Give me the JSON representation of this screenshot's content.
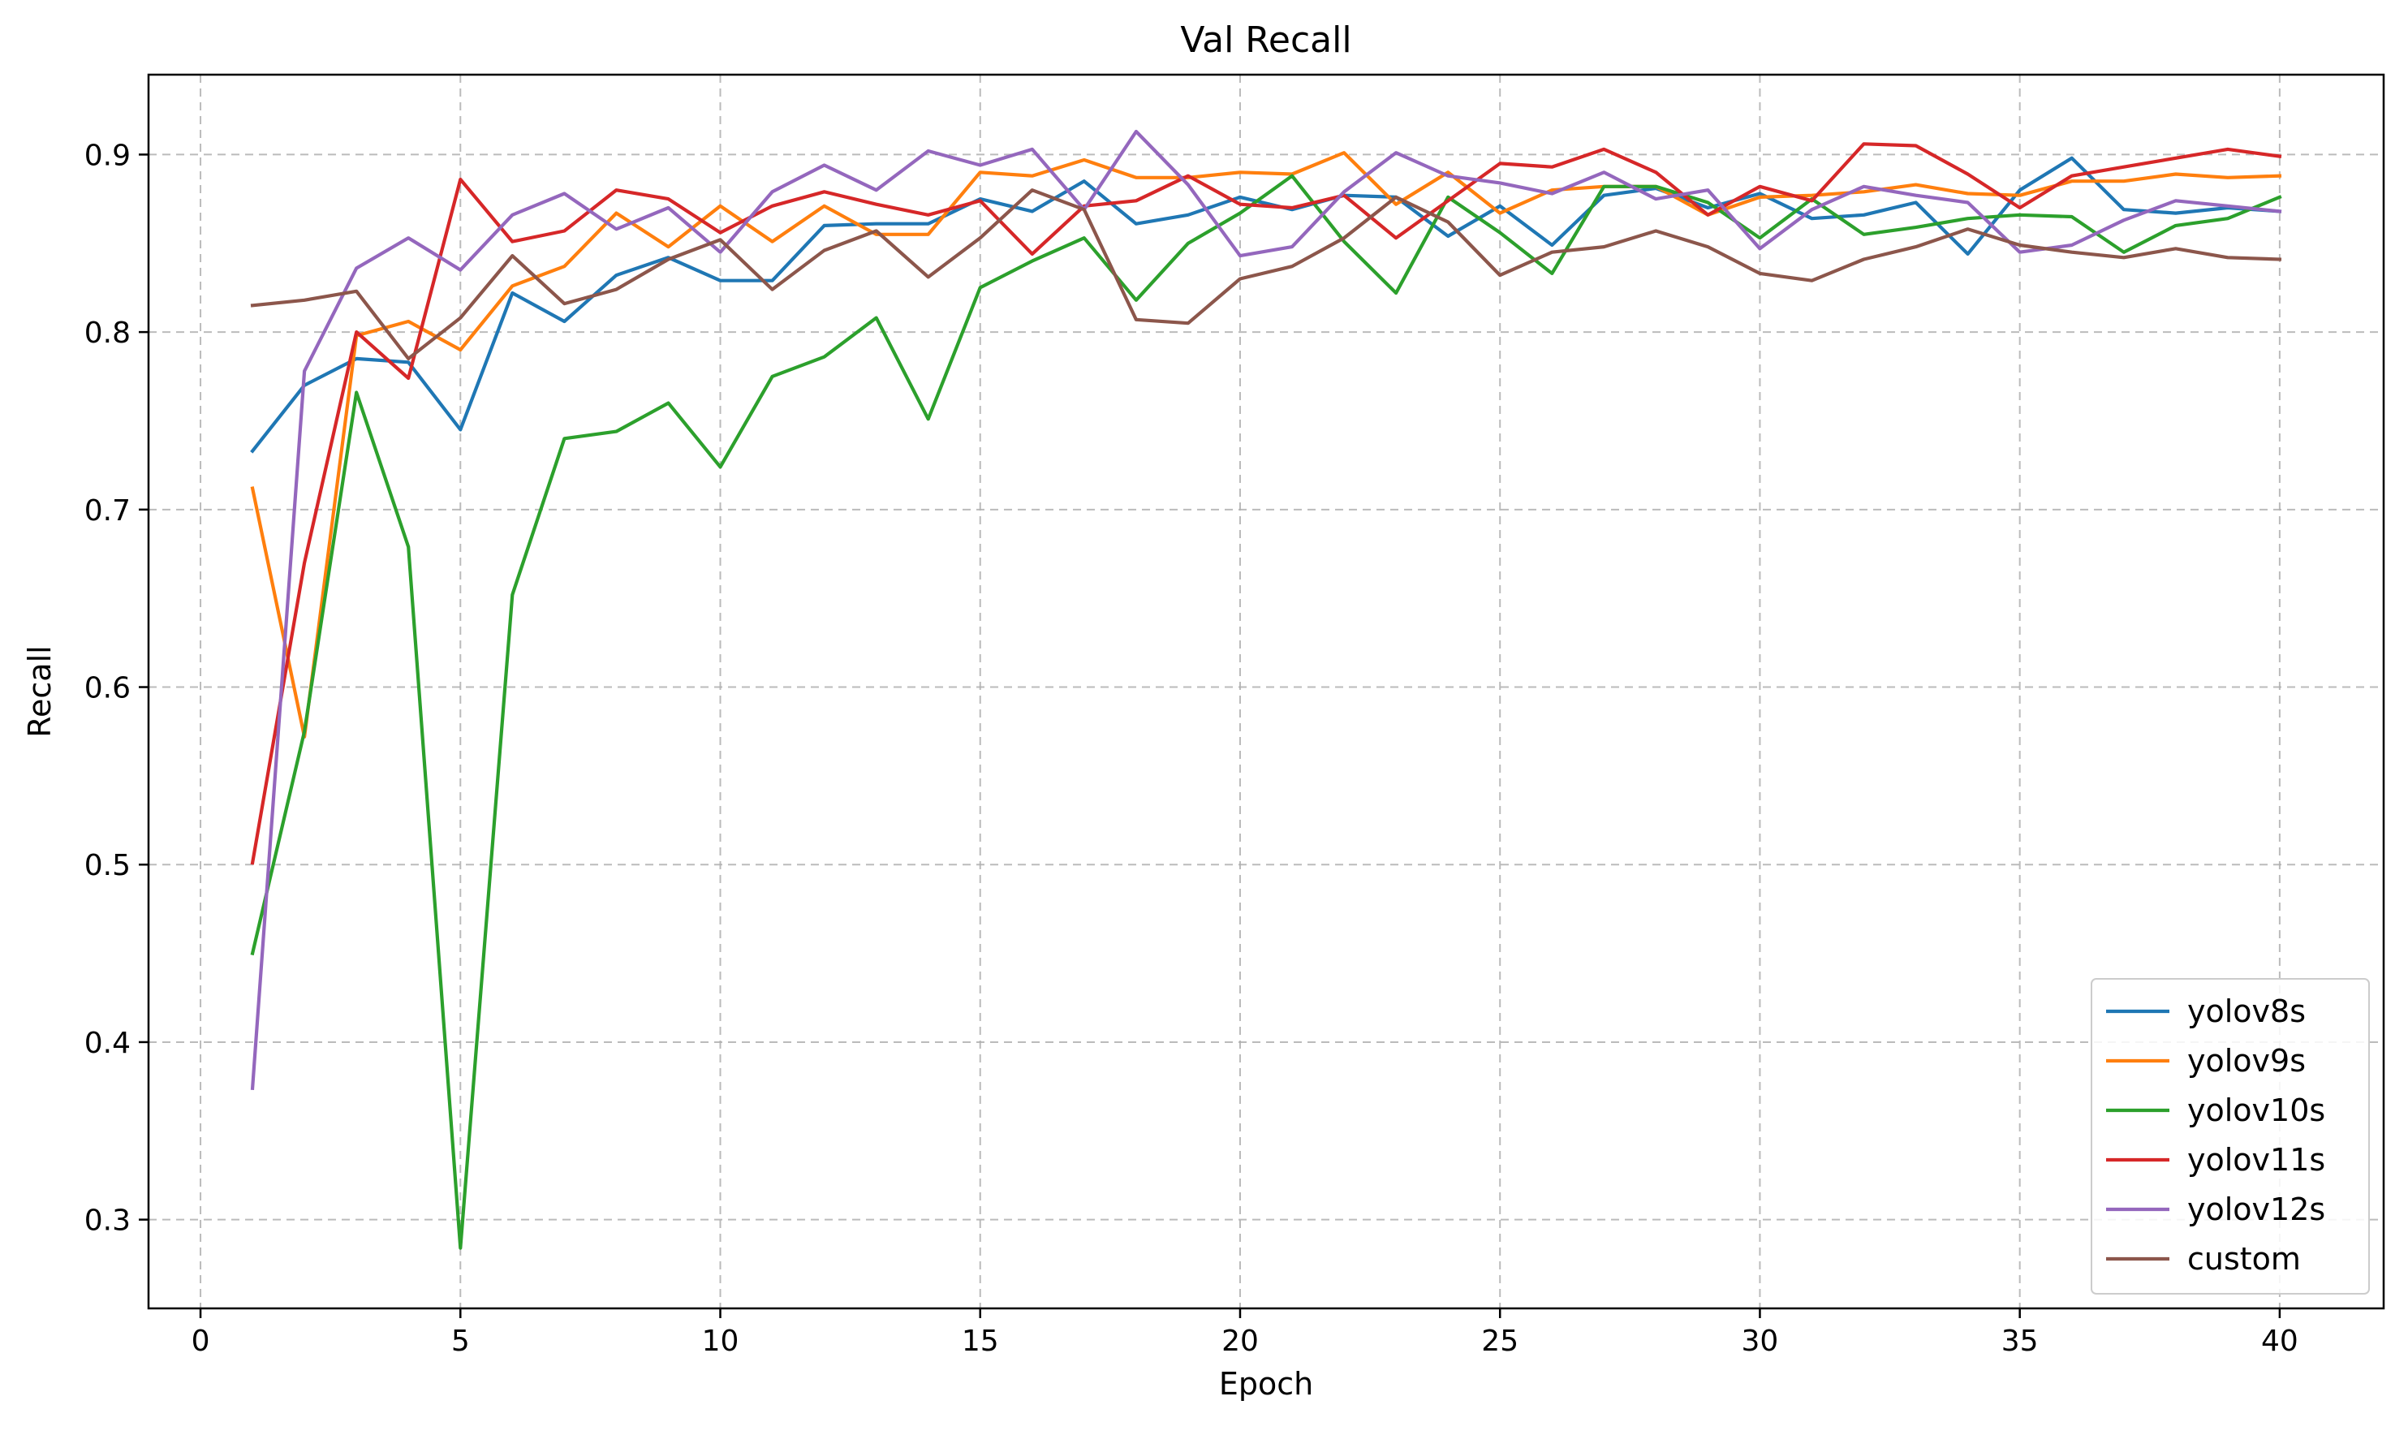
{
  "chart_data": {
    "type": "line",
    "title": "Val Recall",
    "xlabel": "Epoch",
    "ylabel": "Recall",
    "xlim": [
      -1,
      42
    ],
    "ylim": [
      0.25,
      0.945
    ],
    "xticks": [
      0,
      5,
      10,
      15,
      20,
      25,
      30,
      35,
      40
    ],
    "yticks": [
      0.3,
      0.4,
      0.5,
      0.6,
      0.7,
      0.8,
      0.9
    ],
    "grid": true,
    "legend_position": "lower-right",
    "x": [
      1,
      2,
      3,
      4,
      5,
      6,
      7,
      8,
      9,
      10,
      11,
      12,
      13,
      14,
      15,
      16,
      17,
      18,
      19,
      20,
      21,
      22,
      23,
      24,
      25,
      26,
      27,
      28,
      29,
      30,
      31,
      32,
      33,
      34,
      35,
      36,
      37,
      38,
      39,
      40
    ],
    "series": [
      {
        "name": "yolov8s",
        "color": "#1f77b4",
        "values": [
          0.733,
          0.77,
          0.785,
          0.783,
          0.745,
          0.822,
          0.806,
          0.832,
          0.842,
          0.829,
          0.829,
          0.86,
          0.861,
          0.861,
          0.875,
          0.868,
          0.885,
          0.861,
          0.866,
          0.876,
          0.869,
          0.877,
          0.876,
          0.854,
          0.871,
          0.849,
          0.877,
          0.881,
          0.87,
          0.878,
          0.864,
          0.866,
          0.873,
          0.844,
          0.88,
          0.898,
          0.869,
          0.867,
          0.87,
          0.868
        ]
      },
      {
        "name": "yolov9s",
        "color": "#ff7f0e",
        "values": [
          0.712,
          0.572,
          0.798,
          0.806,
          0.79,
          0.826,
          0.837,
          0.867,
          0.848,
          0.871,
          0.851,
          0.871,
          0.855,
          0.855,
          0.89,
          0.888,
          0.897,
          0.887,
          0.887,
          0.89,
          0.889,
          0.901,
          0.872,
          0.89,
          0.867,
          0.88,
          0.882,
          0.882,
          0.866,
          0.876,
          0.877,
          0.879,
          0.883,
          0.878,
          0.877,
          0.885,
          0.885,
          0.889,
          0.887,
          0.888
        ]
      },
      {
        "name": "yolov10s",
        "color": "#2ca02c",
        "values": [
          0.45,
          0.575,
          0.766,
          0.679,
          0.284,
          0.652,
          0.74,
          0.744,
          0.76,
          0.724,
          0.775,
          0.786,
          0.808,
          0.751,
          0.825,
          0.84,
          0.853,
          0.818,
          0.85,
          0.867,
          0.888,
          0.851,
          0.822,
          0.876,
          0.856,
          0.833,
          0.882,
          0.882,
          0.873,
          0.853,
          0.875,
          0.855,
          0.859,
          0.864,
          0.866,
          0.865,
          0.845,
          0.86,
          0.864,
          0.876
        ]
      },
      {
        "name": "yolov11s",
        "color": "#d62728",
        "values": [
          0.501,
          0.67,
          0.8,
          0.774,
          0.886,
          0.851,
          0.857,
          0.88,
          0.875,
          0.856,
          0.871,
          0.879,
          0.872,
          0.866,
          0.874,
          0.844,
          0.871,
          0.874,
          0.888,
          0.872,
          0.87,
          0.877,
          0.853,
          0.874,
          0.895,
          0.893,
          0.903,
          0.89,
          0.866,
          0.882,
          0.874,
          0.906,
          0.905,
          0.889,
          0.87,
          0.888,
          0.893,
          0.898,
          0.903,
          0.899
        ]
      },
      {
        "name": "yolov12s",
        "color": "#9467bd",
        "values": [
          0.374,
          0.778,
          0.836,
          0.853,
          0.835,
          0.866,
          0.878,
          0.858,
          0.87,
          0.845,
          0.879,
          0.894,
          0.88,
          0.902,
          0.894,
          0.903,
          0.869,
          0.913,
          0.883,
          0.843,
          0.848,
          0.879,
          0.901,
          0.888,
          0.884,
          0.878,
          0.89,
          0.875,
          0.88,
          0.847,
          0.869,
          0.882,
          0.877,
          0.873,
          0.845,
          0.849,
          0.863,
          0.874,
          0.871,
          0.868
        ]
      },
      {
        "name": "custom",
        "color": "#8c564b",
        "values": [
          0.815,
          0.818,
          0.823,
          0.785,
          0.808,
          0.843,
          0.816,
          0.824,
          0.841,
          0.852,
          0.824,
          0.846,
          0.857,
          0.831,
          0.853,
          0.88,
          0.869,
          0.807,
          0.805,
          0.83,
          0.837,
          0.853,
          0.876,
          0.862,
          0.832,
          0.845,
          0.848,
          0.857,
          0.848,
          0.833,
          0.829,
          0.841,
          0.848,
          0.858,
          0.849,
          0.845,
          0.842,
          0.847,
          0.842,
          0.841
        ]
      }
    ]
  }
}
